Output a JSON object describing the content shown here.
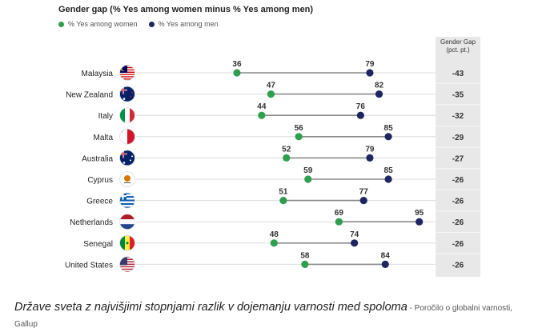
{
  "chart_data": {
    "type": "dumbbell",
    "title": "Gender gap (% Yes among women minus % Yes among men)",
    "legend": [
      {
        "name": "% Yes among women",
        "color": "#2e9e4f"
      },
      {
        "name": "% Yes among men",
        "color": "#1d2660"
      }
    ],
    "legend_position": "top-left",
    "gap_header": [
      "Gender Gap",
      "(pct. pt.)"
    ],
    "rows": [
      {
        "country": "Malaysia",
        "women": 36,
        "men": 79,
        "gap": "-43"
      },
      {
        "country": "New Zealand",
        "women": 47,
        "men": 82,
        "gap": "-35"
      },
      {
        "country": "Italy",
        "women": 44,
        "men": 76,
        "gap": "-32"
      },
      {
        "country": "Malta",
        "women": 56,
        "men": 85,
        "gap": "-29"
      },
      {
        "country": "Australia",
        "women": 52,
        "men": 79,
        "gap": "-27"
      },
      {
        "country": "Cyprus",
        "women": 59,
        "men": 85,
        "gap": "-26"
      },
      {
        "country": "Greece",
        "women": 51,
        "men": 77,
        "gap": "-26"
      },
      {
        "country": "Netherlands",
        "women": 69,
        "men": 95,
        "gap": "-26"
      },
      {
        "country": "Senegal",
        "women": 48,
        "men": 74,
        "gap": "-26"
      },
      {
        "country": "United States",
        "women": 58,
        "men": 84,
        "gap": "-26"
      }
    ],
    "xlim": [
      0,
      100
    ],
    "grid": false
  },
  "caption": {
    "main": "Države sveta z najvišjimi stopnjami razlik v dojemanju varnosti med spoloma",
    "source": " - Poročilo o globalni varnosti, Gallup"
  }
}
